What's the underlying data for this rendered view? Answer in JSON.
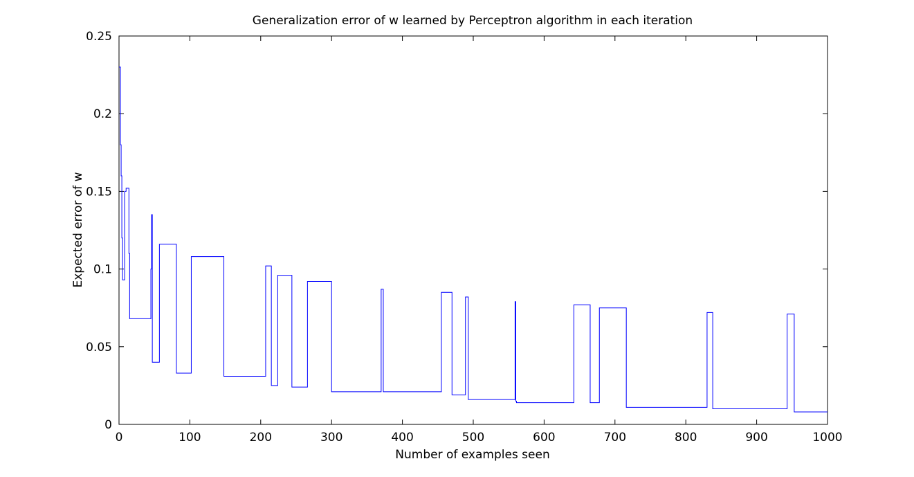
{
  "chart_data": {
    "type": "line",
    "title": "Generalization error of w learned by Perceptron algorithm in each iteration",
    "xlabel": "Number of examples seen",
    "ylabel": "Expected error of w",
    "xlim": [
      0,
      1000
    ],
    "ylim": [
      0,
      0.25
    ],
    "xticks": [
      0,
      100,
      200,
      300,
      400,
      500,
      600,
      700,
      800,
      900,
      1000
    ],
    "xtick_labels": [
      "0",
      "100",
      "200",
      "300",
      "400",
      "500",
      "600",
      "700",
      "800",
      "900",
      "1000"
    ],
    "yticks": [
      0,
      0.05,
      0.1,
      0.15,
      0.2,
      0.25
    ],
    "ytick_labels": [
      "0",
      "0.05",
      "0.1",
      "0.15",
      "0.2",
      "0.25"
    ],
    "grid": false,
    "line_color": "#0000ff",
    "series": [
      {
        "step": "post",
        "x": [
          0,
          2,
          3,
          4,
          5,
          8,
          10,
          14,
          15,
          45,
          46,
          47,
          56,
          57,
          80,
          81,
          101,
          102,
          146,
          148,
          205,
          207,
          214,
          215,
          222,
          224,
          243,
          244,
          265,
          266,
          297,
          300,
          367,
          370,
          372,
          373,
          454,
          455,
          469,
          470,
          487,
          489,
          492,
          493,
          558,
          559,
          560,
          561,
          641,
          642,
          664,
          665,
          677,
          678,
          714,
          716,
          828,
          830,
          837,
          838,
          941,
          943,
          952,
          953,
          1000
        ],
        "y": [
          0.23,
          0.18,
          0.16,
          0.12,
          0.093,
          0.15,
          0.152,
          0.11,
          0.068,
          0.1,
          0.135,
          0.04,
          0.04,
          0.116,
          0.116,
          0.033,
          0.033,
          0.108,
          0.108,
          0.031,
          0.031,
          0.102,
          0.102,
          0.025,
          0.025,
          0.096,
          0.096,
          0.024,
          0.024,
          0.092,
          0.092,
          0.021,
          0.021,
          0.087,
          0.087,
          0.021,
          0.021,
          0.085,
          0.085,
          0.019,
          0.019,
          0.082,
          0.082,
          0.016,
          0.016,
          0.079,
          0.015,
          0.014,
          0.014,
          0.077,
          0.077,
          0.014,
          0.014,
          0.075,
          0.075,
          0.011,
          0.011,
          0.072,
          0.072,
          0.01,
          0.01,
          0.071,
          0.071,
          0.008,
          0.008
        ]
      }
    ]
  }
}
